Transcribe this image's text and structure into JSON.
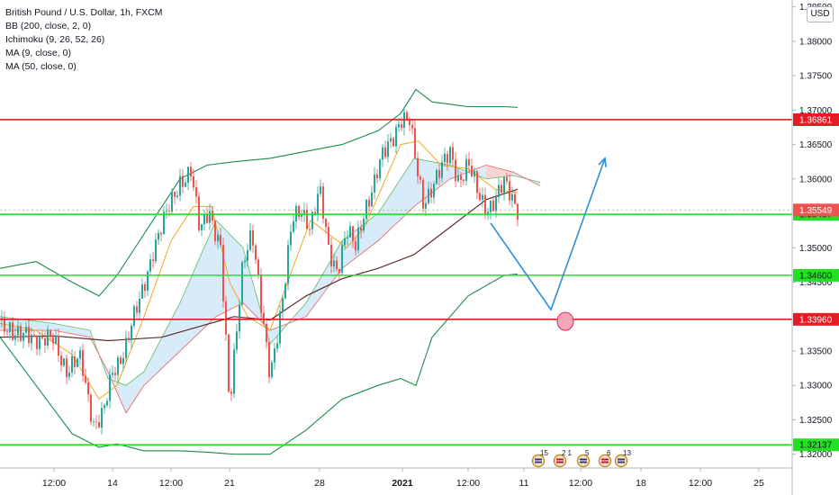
{
  "header": {
    "symbol_line": "British Pound / U.S. Dollar, 1h, FXCM",
    "indicators": [
      "BB (200, close, 2, 0)",
      "Ichimoku (9, 26, 52, 26)",
      "MA (9, close, 0)",
      "MA (50, close, 0)"
    ],
    "currency": "USD"
  },
  "colors": {
    "bull": "#26a69a",
    "bear": "#ef5350",
    "bb_band": "#1e8a4a",
    "ma_slow": "#5d2a2a",
    "ma_fast": "#f5a623",
    "red_level": "#e51c23",
    "green_level": "#22e122",
    "projection": "#2a8fd9",
    "cloud_bull": "#c9e6f6",
    "cloud_bear": "#f7c6c4"
  },
  "chart_data": {
    "type": "line",
    "title": "British Pound / U.S. Dollar, 1h, FXCM",
    "y_axis": {
      "min": 1.318,
      "max": 1.386,
      "ticks": [
        "1.32000",
        "1.32500",
        "1.33000",
        "1.33500",
        "1.34000",
        "1.34500",
        "1.35000",
        "1.35500",
        "1.36000",
        "1.36500",
        "1.37000",
        "1.37500",
        "1.38000",
        "1.38500"
      ],
      "tick_values": [
        1.32,
        1.325,
        1.33,
        1.335,
        1.34,
        1.345,
        1.35,
        1.355,
        1.36,
        1.365,
        1.37,
        1.375,
        1.38,
        1.385
      ]
    },
    "x_axis": {
      "min": 0,
      "max": 880,
      "ticks": [
        {
          "label": "12:00",
          "x": 60,
          "bold": false
        },
        {
          "label": "14",
          "x": 125,
          "bold": false
        },
        {
          "label": "12:00",
          "x": 190,
          "bold": false
        },
        {
          "label": "21",
          "x": 255,
          "bold": false
        },
        {
          "label": "28",
          "x": 355,
          "bold": false
        },
        {
          "label": "2021",
          "x": 447,
          "bold": true
        },
        {
          "label": "12:00",
          "x": 520,
          "bold": false
        },
        {
          "label": "11",
          "x": 582,
          "bold": false
        },
        {
          "label": "12:00",
          "x": 645,
          "bold": false
        },
        {
          "label": "18",
          "x": 712,
          "bold": false
        },
        {
          "label": "12:00",
          "x": 778,
          "bold": false
        },
        {
          "label": "25",
          "x": 843,
          "bold": false
        }
      ]
    },
    "horizontal_levels": [
      {
        "price": "1.36861",
        "value": 1.36861,
        "kind": "red"
      },
      {
        "price": "1.35487",
        "value": 1.35487,
        "kind": "green"
      },
      {
        "price": "1.34600",
        "value": 1.346,
        "kind": "green"
      },
      {
        "price": "1.33960",
        "value": 1.3396,
        "kind": "red"
      },
      {
        "price": "1.32137",
        "value": 1.32137,
        "kind": "green"
      }
    ],
    "current_price": {
      "price": "1.35549",
      "value": 1.35549
    },
    "price_series": {
      "x": [
        0,
        15,
        30,
        45,
        60,
        75,
        90,
        105,
        115,
        125,
        140,
        155,
        170,
        185,
        200,
        212,
        222,
        232,
        245,
        255,
        262,
        270,
        280,
        290,
        300,
        315,
        325,
        335,
        345,
        355,
        365,
        375,
        385,
        395,
        405,
        415,
        425,
        435,
        445,
        455,
        462,
        470,
        480,
        490,
        500,
        510,
        520,
        530,
        540,
        550,
        560,
        570,
        575
      ],
      "close": [
        1.3395,
        1.3365,
        1.3385,
        1.3355,
        1.3375,
        1.3315,
        1.334,
        1.324,
        1.3255,
        1.332,
        1.336,
        1.342,
        1.35,
        1.3545,
        1.36,
        1.361,
        1.352,
        1.356,
        1.35,
        1.326,
        1.337,
        1.349,
        1.352,
        1.341,
        1.332,
        1.343,
        1.354,
        1.356,
        1.353,
        1.358,
        1.35,
        1.347,
        1.352,
        1.35,
        1.356,
        1.359,
        1.363,
        1.366,
        1.369,
        1.368,
        1.362,
        1.357,
        1.359,
        1.361,
        1.364,
        1.36,
        1.362,
        1.358,
        1.356,
        1.357,
        1.359,
        1.357,
        1.356
      ]
    },
    "bollinger": {
      "x": [
        0,
        40,
        80,
        110,
        130,
        160,
        200,
        230,
        260,
        300,
        340,
        380,
        420,
        445,
        462,
        480,
        520,
        560,
        575
      ],
      "upper": [
        1.347,
        1.348,
        1.345,
        1.343,
        1.346,
        1.352,
        1.36,
        1.362,
        1.3625,
        1.363,
        1.364,
        1.365,
        1.367,
        1.3695,
        1.373,
        1.3712,
        1.3705,
        1.3705,
        1.3704
      ],
      "lower": [
        1.337,
        1.33,
        1.323,
        1.321,
        1.3215,
        1.3205,
        1.3205,
        1.3203,
        1.32,
        1.32,
        1.3235,
        1.328,
        1.33,
        1.331,
        1.33,
        1.337,
        1.343,
        1.346,
        1.3462
      ]
    },
    "ma_slow": {
      "x": [
        0,
        60,
        120,
        180,
        220,
        260,
        300,
        340,
        380,
        420,
        460,
        500,
        540,
        575
      ],
      "values": [
        1.337,
        1.3372,
        1.3365,
        1.337,
        1.3385,
        1.34,
        1.3395,
        1.343,
        1.3455,
        1.347,
        1.349,
        1.353,
        1.357,
        1.3585
      ]
    },
    "ma_fast": {
      "x": [
        0,
        40,
        80,
        110,
        130,
        160,
        190,
        215,
        235,
        255,
        275,
        300,
        325,
        345,
        365,
        385,
        405,
        425,
        445,
        465,
        490,
        520,
        550,
        575
      ],
      "values": [
        1.339,
        1.338,
        1.3345,
        1.328,
        1.33,
        1.34,
        1.351,
        1.356,
        1.356,
        1.345,
        1.34,
        1.338,
        1.347,
        1.354,
        1.352,
        1.35,
        1.353,
        1.359,
        1.365,
        1.3655,
        1.362,
        1.3615,
        1.3585,
        1.358
      ]
    },
    "ichimoku_cloud": {
      "x": [
        0,
        60,
        100,
        120,
        140,
        160,
        200,
        240,
        270,
        300,
        340,
        380,
        400,
        420,
        460,
        500,
        540,
        570,
        600
      ],
      "span_a": [
        1.34,
        1.339,
        1.338,
        1.331,
        1.33,
        1.332,
        1.342,
        1.354,
        1.35,
        1.336,
        1.342,
        1.351,
        1.353,
        1.355,
        1.363,
        1.362,
        1.36,
        1.3605,
        1.3595
      ],
      "span_b": [
        1.338,
        1.338,
        1.337,
        1.332,
        1.326,
        1.33,
        1.335,
        1.34,
        1.342,
        1.338,
        1.34,
        1.347,
        1.349,
        1.351,
        1.356,
        1.36,
        1.362,
        1.361,
        1.359
      ]
    },
    "projection_path": {
      "x": [
        545,
        612,
        672
      ],
      "values": [
        1.3536,
        1.341,
        1.363
      ]
    },
    "target_marker": {
      "x": 628,
      "value": 1.3393
    },
    "event_icons": {
      "x": [
        598,
        622,
        648,
        672,
        690
      ],
      "labels": [
        "15",
        "2 1",
        "5",
        "6",
        "13"
      ]
    }
  }
}
